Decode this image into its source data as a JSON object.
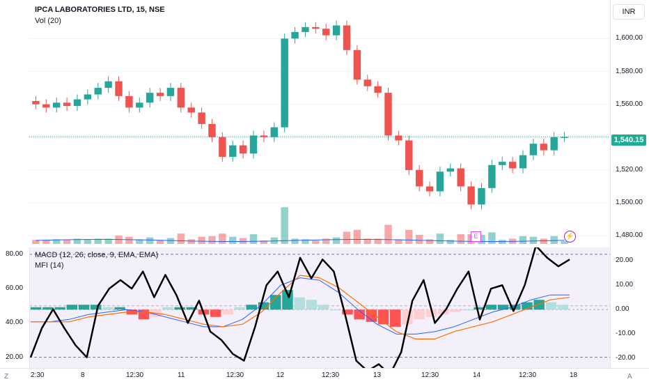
{
  "header": {
    "symbol_title": "IPCA LABORATORIES LTD, 15, NSE",
    "volume_label": "Vol (20)",
    "macd_label": "MACD (12, 26, close, 9, EMA, EMA)",
    "mfi_label": "MFI (14)",
    "currency": "INR",
    "last_price": "1,540.15"
  },
  "axes": {
    "price_ticks": [
      "1,600.00",
      "1,580.00",
      "1,560.00",
      "1,520.00",
      "1,500.00",
      "1,480.00"
    ],
    "macd_ticks": [
      "20.00",
      "10.00",
      "0.00",
      "-10.00",
      "-20.00"
    ],
    "mfi_ticks": [
      "80.00",
      "60.00",
      "40.00",
      "20.00"
    ],
    "time_ticks": [
      "2:30",
      "8",
      "12:30",
      "11",
      "12:30",
      "12",
      "12:30",
      "13",
      "12:30",
      "14",
      "12:30",
      "18"
    ],
    "corner_left": "Z",
    "corner_right": "A"
  },
  "markers": {
    "earnings": "E"
  },
  "colors": {
    "up": "#26a69a",
    "down": "#ef5350",
    "macd_line": "#2962ff",
    "signal_line": "#ff6d00",
    "mfi_line": "#000000",
    "mfi_band": "#7e57c2"
  },
  "chart_data": [
    {
      "type": "candlestick",
      "title": "IPCA LABORATORIES LTD, 15, NSE",
      "ylim": [
        1475,
        1615
      ],
      "close_series": [
        1560,
        1558,
        1561,
        1559,
        1563,
        1566,
        1570,
        1574,
        1565,
        1558,
        1561,
        1567,
        1565,
        1570,
        1558,
        1555,
        1548,
        1540,
        1528,
        1535,
        1530,
        1541,
        1540,
        1546,
        1600,
        1604,
        1607,
        1606,
        1602,
        1608,
        1593,
        1575,
        1571,
        1567,
        1541,
        1538,
        1520,
        1510,
        1507,
        1519,
        1521,
        1510,
        1499,
        1509,
        1523,
        1525,
        1521,
        1529,
        1536,
        1532,
        1540,
        1540.15
      ],
      "last_price": 1540.15
    },
    {
      "type": "bar",
      "title": "MACD (12, 26, close, 9, EMA, EMA)",
      "ylim": [
        -23,
        24
      ],
      "histogram": [
        1,
        1,
        1,
        2,
        2,
        2,
        1,
        1,
        -2,
        -4,
        -3,
        1,
        1,
        1,
        -2,
        -3,
        -2,
        1,
        2,
        3,
        6,
        8,
        5,
        4,
        2,
        0,
        -2,
        -4,
        -5,
        -6,
        -7,
        -6,
        -4,
        -3,
        -2,
        -1,
        0,
        1,
        2,
        2,
        2,
        3,
        4,
        3,
        2
      ],
      "macd_line": [
        -5,
        -5,
        -4,
        -2,
        -1,
        0,
        -1,
        -3,
        -5,
        -7,
        -7,
        -4,
        2,
        10,
        13,
        12,
        7,
        0,
        -6,
        -10,
        -10,
        -9,
        -7,
        -4,
        -1,
        1,
        4,
        6,
        6
      ],
      "signal_line": [
        -5,
        -5,
        -5,
        -3,
        -2,
        -1,
        -1,
        -2,
        -4,
        -6,
        -7,
        -6,
        -1,
        7,
        14,
        13,
        9,
        3,
        -3,
        -9,
        -12,
        -12,
        -9,
        -7,
        -5,
        -2,
        1,
        4,
        5
      ]
    },
    {
      "type": "line",
      "title": "MFI (14)",
      "ylim": [
        15,
        82
      ],
      "y": [
        20,
        37,
        48,
        37,
        27,
        20,
        50,
        60,
        65,
        60,
        70,
        55,
        68,
        56,
        40,
        53,
        35,
        30,
        22,
        18,
        38,
        62,
        70,
        55,
        78,
        66,
        77,
        70,
        45,
        18,
        12,
        16,
        10,
        23,
        53,
        65,
        40,
        48,
        60,
        70,
        42,
        60,
        62,
        47,
        62,
        85,
        78,
        73,
        77
      ],
      "bands": [
        80,
        20
      ],
      "mid": 50
    }
  ]
}
